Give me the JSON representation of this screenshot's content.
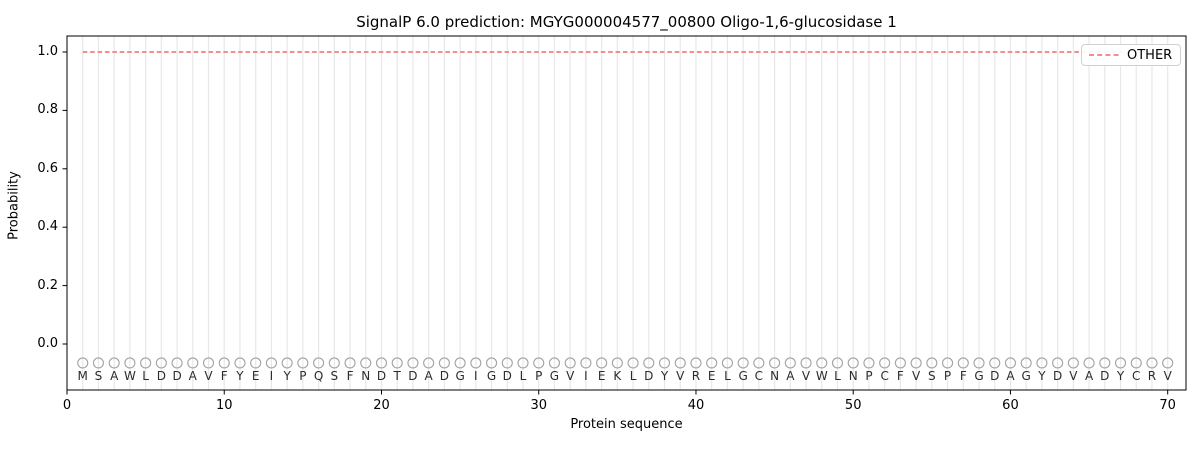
{
  "chart_data": {
    "type": "line",
    "title": "SignalP 6.0 prediction: MGYG000004577_00800 Oligo-1,6-glucosidase 1",
    "xlabel": "Protein sequence",
    "ylabel": "Probability",
    "x_ticks": [
      0,
      10,
      20,
      30,
      40,
      50,
      60,
      70
    ],
    "y_ticks": [
      "0.0",
      "0.2",
      "0.4",
      "0.6",
      "0.8",
      "1.0"
    ],
    "xlim": [
      0,
      71.2
    ],
    "ylim": [
      -0.165,
      1.055
    ],
    "grid": "vertical gridline at every residue position 1-70",
    "series": [
      {
        "name": "OTHER",
        "style": "dashed",
        "color": "#f08080",
        "x_start": 1,
        "x_end": 70,
        "y_constant": 1.0,
        "note": "constant probability 1.0 across all 70 residues"
      }
    ],
    "residue_markers": {
      "shape": "open-circle",
      "color": "#a3a3a3",
      "y_constant": -0.065,
      "note": "one unfilled circle per residue above each sequence letter"
    },
    "sequence": [
      "M",
      "S",
      "A",
      "W",
      "L",
      "D",
      "D",
      "A",
      "V",
      "F",
      "Y",
      "E",
      "I",
      "Y",
      "P",
      "Q",
      "S",
      "F",
      "N",
      "D",
      "T",
      "D",
      "A",
      "D",
      "G",
      "I",
      "G",
      "D",
      "L",
      "P",
      "G",
      "V",
      "I",
      "E",
      "K",
      "L",
      "D",
      "Y",
      "V",
      "R",
      "E",
      "L",
      "G",
      "C",
      "N",
      "A",
      "V",
      "W",
      "L",
      "N",
      "P",
      "C",
      "F",
      "V",
      "S",
      "P",
      "F",
      "G",
      "D",
      "A",
      "G",
      "Y",
      "D",
      "V",
      "A",
      "D",
      "Y",
      "C",
      "R",
      "V"
    ],
    "legend": {
      "position": "upper right",
      "entries": [
        {
          "label": "OTHER",
          "color": "#f08080",
          "style": "dashed"
        }
      ]
    }
  },
  "colors": {
    "background": "#ffffff",
    "other_line": "#f08080",
    "grid": "#e8e8e8",
    "spine": "#000000",
    "marker": "#a3a3a3",
    "text": "#000000",
    "legend_border": "#d0d0d0"
  }
}
